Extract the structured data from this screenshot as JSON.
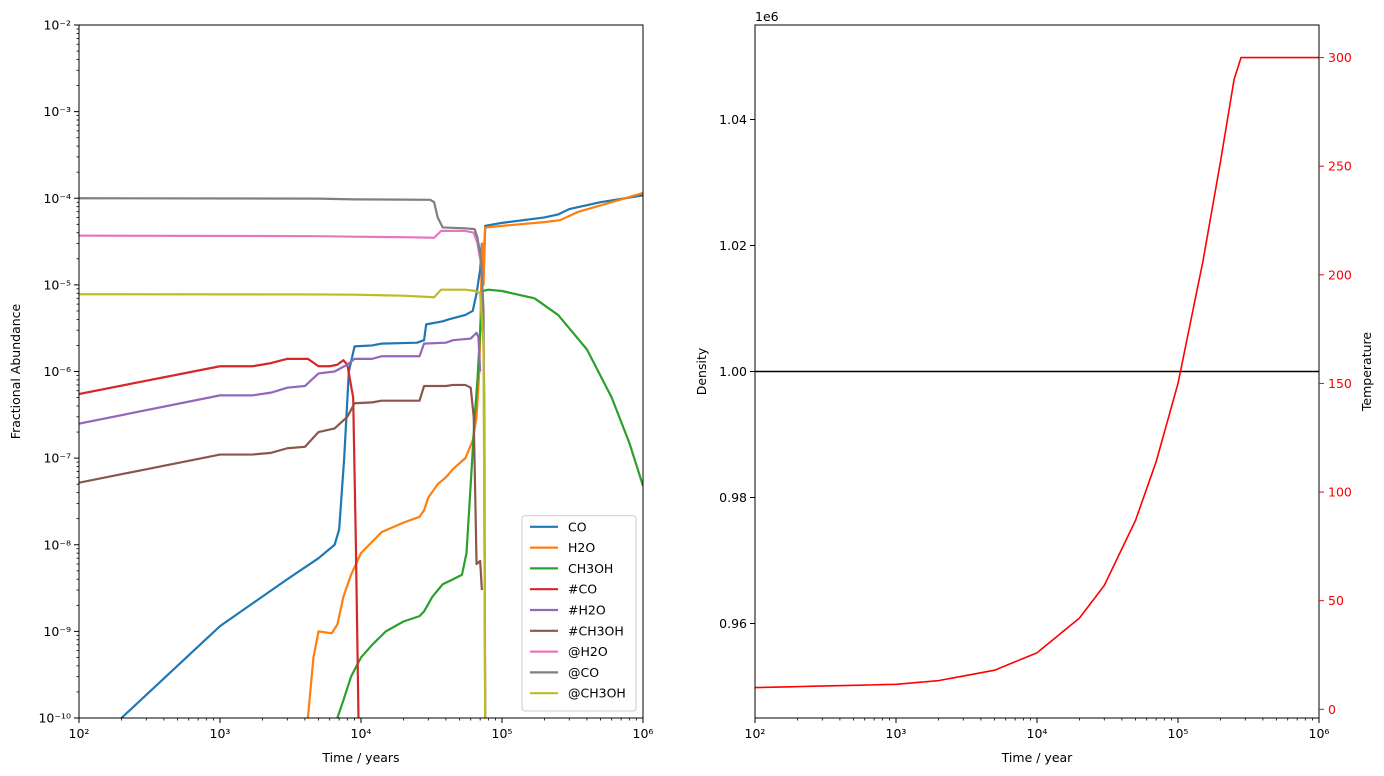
{
  "chart_data": [
    {
      "type": "line",
      "xlabel": "Time / years",
      "ylabel": "Fractional Abundance",
      "xscale": "log",
      "yscale": "log",
      "xlim": [
        100,
        1000000
      ],
      "ylim": [
        1e-10,
        0.01
      ],
      "xticks": [
        100,
        1000,
        10000,
        100000,
        1000000
      ],
      "yticks": [
        1e-10,
        1e-09,
        1e-08,
        1e-07,
        1e-06,
        1e-05,
        0.0001,
        0.001,
        0.01
      ],
      "grid": false,
      "legend": "lower-right",
      "series": [
        {
          "name": "CO",
          "color": "#1f77b4",
          "points": [
            [
              100,
              2.5e-11
            ],
            [
              200,
              1e-10
            ],
            [
              1000,
              1.15e-09
            ],
            [
              3000,
              4e-09
            ],
            [
              5000,
              7e-09
            ],
            [
              6500,
              1e-08
            ],
            [
              7000,
              1.5e-08
            ],
            [
              7600,
              1e-07
            ],
            [
              8200,
              1e-06
            ],
            [
              9000,
              1.95e-06
            ],
            [
              12000,
              2e-06
            ],
            [
              14000,
              2.1e-06
            ],
            [
              25000,
              2.15e-06
            ],
            [
              28000,
              2.3e-06
            ],
            [
              29000,
              3.5e-06
            ],
            [
              38000,
              3.8e-06
            ],
            [
              42000,
              4e-06
            ],
            [
              55000,
              4.5e-06
            ],
            [
              62000,
              5e-06
            ],
            [
              66000,
              8e-06
            ],
            [
              70000,
              1.5e-05
            ],
            [
              72000,
              3e-05
            ],
            [
              74000,
              1.5e-05
            ],
            [
              76000,
              4.8e-05
            ],
            [
              100000,
              5.2e-05
            ],
            [
              200000,
              6e-05
            ],
            [
              250000,
              6.5e-05
            ],
            [
              300000,
              7.5e-05
            ],
            [
              500000,
              9e-05
            ],
            [
              1000000,
              0.000108
            ]
          ]
        },
        {
          "name": "H2O",
          "color": "#ff7f0e",
          "points": [
            [
              4200,
              1e-10
            ],
            [
              4600,
              5e-10
            ],
            [
              5000,
              1e-09
            ],
            [
              6200,
              9.5e-10
            ],
            [
              6800,
              1.2e-09
            ],
            [
              7500,
              2.5e-09
            ],
            [
              8500,
              4.5e-09
            ],
            [
              10000,
              8e-09
            ],
            [
              14000,
              1.4e-08
            ],
            [
              20000,
              1.8e-08
            ],
            [
              26000,
              2.1e-08
            ],
            [
              28000,
              2.5e-08
            ],
            [
              30000,
              3.5e-08
            ],
            [
              35000,
              5e-08
            ],
            [
              40000,
              6e-08
            ],
            [
              45000,
              7.5e-08
            ],
            [
              55000,
              1e-07
            ],
            [
              62000,
              1.6e-07
            ],
            [
              66000,
              3e-07
            ],
            [
              69000,
              1e-06
            ],
            [
              71000,
              8e-06
            ],
            [
              72500,
              3e-05
            ],
            [
              74000,
              1e-05
            ],
            [
              76000,
              4.6e-05
            ],
            [
              100000,
              4.8e-05
            ],
            [
              200000,
              5.3e-05
            ],
            [
              260000,
              5.6e-05
            ],
            [
              350000,
              7e-05
            ],
            [
              600000,
              9e-05
            ],
            [
              1000000,
              0.000115
            ]
          ]
        },
        {
          "name": "CH3OH",
          "color": "#2ca02c",
          "points": [
            [
              6800,
              1e-10
            ],
            [
              7500,
              1.6e-10
            ],
            [
              8500,
              3e-10
            ],
            [
              10000,
              5e-10
            ],
            [
              12000,
              7e-10
            ],
            [
              15000,
              1e-09
            ],
            [
              20000,
              1.3e-09
            ],
            [
              26000,
              1.5e-09
            ],
            [
              28000,
              1.7e-09
            ],
            [
              32000,
              2.5e-09
            ],
            [
              38000,
              3.5e-09
            ],
            [
              45000,
              4e-09
            ],
            [
              52000,
              4.5e-09
            ],
            [
              56000,
              8e-09
            ],
            [
              60000,
              5e-08
            ],
            [
              64000,
              3e-07
            ],
            [
              67000,
              8e-07
            ],
            [
              70000,
              3e-06
            ],
            [
              73000,
              8.5e-06
            ],
            [
              80000,
              8.8e-06
            ],
            [
              100000,
              8.5e-06
            ],
            [
              170000,
              7e-06
            ],
            [
              250000,
              4.5e-06
            ],
            [
              400000,
              1.8e-06
            ],
            [
              600000,
              5e-07
            ],
            [
              800000,
              1.5e-07
            ],
            [
              1000000,
              4.8e-08
            ]
          ]
        },
        {
          "name": "#CO",
          "color": "#d62728",
          "points": [
            [
              100,
              5.5e-07
            ],
            [
              1000,
              1.15e-06
            ],
            [
              1700,
              1.15e-06
            ],
            [
              2300,
              1.25e-06
            ],
            [
              3000,
              1.4e-06
            ],
            [
              4200,
              1.4e-06
            ],
            [
              5000,
              1.15e-06
            ],
            [
              6000,
              1.15e-06
            ],
            [
              6800,
              1.2e-06
            ],
            [
              7500,
              1.35e-06
            ],
            [
              8000,
              1.2e-06
            ],
            [
              8800,
              5e-07
            ],
            [
              9200,
              1e-08
            ],
            [
              9600,
              1e-10
            ]
          ]
        },
        {
          "name": "#H2O",
          "color": "#9467bd",
          "points": [
            [
              100,
              2.5e-07
            ],
            [
              1000,
              5.3e-07
            ],
            [
              1700,
              5.3e-07
            ],
            [
              2300,
              5.7e-07
            ],
            [
              3000,
              6.5e-07
            ],
            [
              4000,
              6.8e-07
            ],
            [
              5000,
              9.5e-07
            ],
            [
              6500,
              1e-06
            ],
            [
              8000,
              1.2e-06
            ],
            [
              9000,
              1.4e-06
            ],
            [
              12000,
              1.4e-06
            ],
            [
              14000,
              1.5e-06
            ],
            [
              26000,
              1.5e-06
            ],
            [
              28000,
              2.1e-06
            ],
            [
              40000,
              2.15e-06
            ],
            [
              45000,
              2.3e-06
            ],
            [
              60000,
              2.4e-06
            ],
            [
              66000,
              2.8e-06
            ],
            [
              68000,
              2.5e-06
            ],
            [
              70000,
              1e-06
            ]
          ]
        },
        {
          "name": "#CH3OH",
          "color": "#8c564b",
          "points": [
            [
              100,
              5.2e-08
            ],
            [
              1000,
              1.1e-07
            ],
            [
              1700,
              1.1e-07
            ],
            [
              2300,
              1.15e-07
            ],
            [
              3000,
              1.3e-07
            ],
            [
              4000,
              1.35e-07
            ],
            [
              5000,
              2e-07
            ],
            [
              6500,
              2.2e-07
            ],
            [
              8000,
              3e-07
            ],
            [
              9000,
              4.3e-07
            ],
            [
              12000,
              4.4e-07
            ],
            [
              14000,
              4.6e-07
            ],
            [
              26000,
              4.6e-07
            ],
            [
              28000,
              6.8e-07
            ],
            [
              40000,
              6.8e-07
            ],
            [
              45000,
              7e-07
            ],
            [
              55000,
              7e-07
            ],
            [
              60000,
              6.5e-07
            ],
            [
              63000,
              3e-07
            ],
            [
              66000,
              6e-09
            ],
            [
              70000,
              6.5e-09
            ],
            [
              72000,
              3e-09
            ]
          ]
        },
        {
          "name": "@H2O",
          "color": "#e377c2",
          "points": [
            [
              100,
              3.7e-05
            ],
            [
              5000,
              3.65e-05
            ],
            [
              9000,
              3.6e-05
            ],
            [
              20000,
              3.55e-05
            ],
            [
              33000,
              3.5e-05
            ],
            [
              37000,
              4.2e-05
            ],
            [
              55000,
              4.2e-05
            ],
            [
              63000,
              4e-05
            ],
            [
              67000,
              3e-05
            ],
            [
              72000,
              1.5e-05
            ],
            [
              75000,
              5e-07
            ],
            [
              76000,
              1e-10
            ]
          ]
        },
        {
          "name": "@CO",
          "color": "#7f7f7f",
          "points": [
            [
              100,
              0.0001
            ],
            [
              5000,
              9.9e-05
            ],
            [
              9000,
              9.7e-05
            ],
            [
              20000,
              9.65e-05
            ],
            [
              31000,
              9.6e-05
            ],
            [
              33000,
              9e-05
            ],
            [
              35000,
              6e-05
            ],
            [
              38000,
              4.6e-05
            ],
            [
              55000,
              4.5e-05
            ],
            [
              64000,
              4.4e-05
            ],
            [
              67000,
              3.5e-05
            ],
            [
              71000,
              2e-05
            ],
            [
              74000,
              5e-06
            ],
            [
              76000,
              1e-10
            ]
          ]
        },
        {
          "name": "@CH3OH",
          "color": "#bcbd22",
          "points": [
            [
              100,
              7.8e-06
            ],
            [
              5000,
              7.75e-06
            ],
            [
              9000,
              7.7e-06
            ],
            [
              20000,
              7.5e-06
            ],
            [
              33000,
              7.2e-06
            ],
            [
              37000,
              8.8e-06
            ],
            [
              55000,
              8.8e-06
            ],
            [
              65000,
              8.5e-06
            ],
            [
              70000,
              8e-06
            ],
            [
              74000,
              2e-06
            ],
            [
              76000,
              1e-10
            ]
          ]
        }
      ]
    },
    {
      "type": "line",
      "xlabel": "Time / year",
      "ylabel": "Density",
      "y2label": "Temperature",
      "xscale": "log",
      "xlim": [
        100,
        1000000
      ],
      "ylim": [
        0.945,
        1.055
      ],
      "y_offset_text": "1e6",
      "yticks": [
        0.96,
        0.98,
        1.0,
        1.02,
        1.04
      ],
      "ytick_labels": [
        "0.96",
        "0.98",
        "1.00",
        "1.02",
        "1.04"
      ],
      "y2lim": [
        -4,
        315
      ],
      "y2ticks": [
        0,
        50,
        100,
        150,
        200,
        250,
        300
      ],
      "grid": false,
      "series": [
        {
          "name": "Density",
          "axis": "left",
          "color": "#000000",
          "points": [
            [
              100,
              1.0
            ],
            [
              1000000,
              1.0
            ]
          ]
        },
        {
          "name": "Temperature",
          "axis": "right",
          "color": "#ff0000",
          "points": [
            [
              100,
              10
            ],
            [
              1000,
              11.5
            ],
            [
              2000,
              13.2
            ],
            [
              5000,
              18
            ],
            [
              10000,
              26
            ],
            [
              20000,
              42
            ],
            [
              30000,
              57
            ],
            [
              50000,
              87
            ],
            [
              70000,
              114
            ],
            [
              100000,
              150
            ],
            [
              150000,
              206
            ],
            [
              200000,
              252
            ],
            [
              250000,
              290
            ],
            [
              280000,
              300
            ],
            [
              1000000,
              300
            ]
          ]
        }
      ]
    }
  ],
  "icons": {
    "legend-swatch": "line-segment"
  }
}
